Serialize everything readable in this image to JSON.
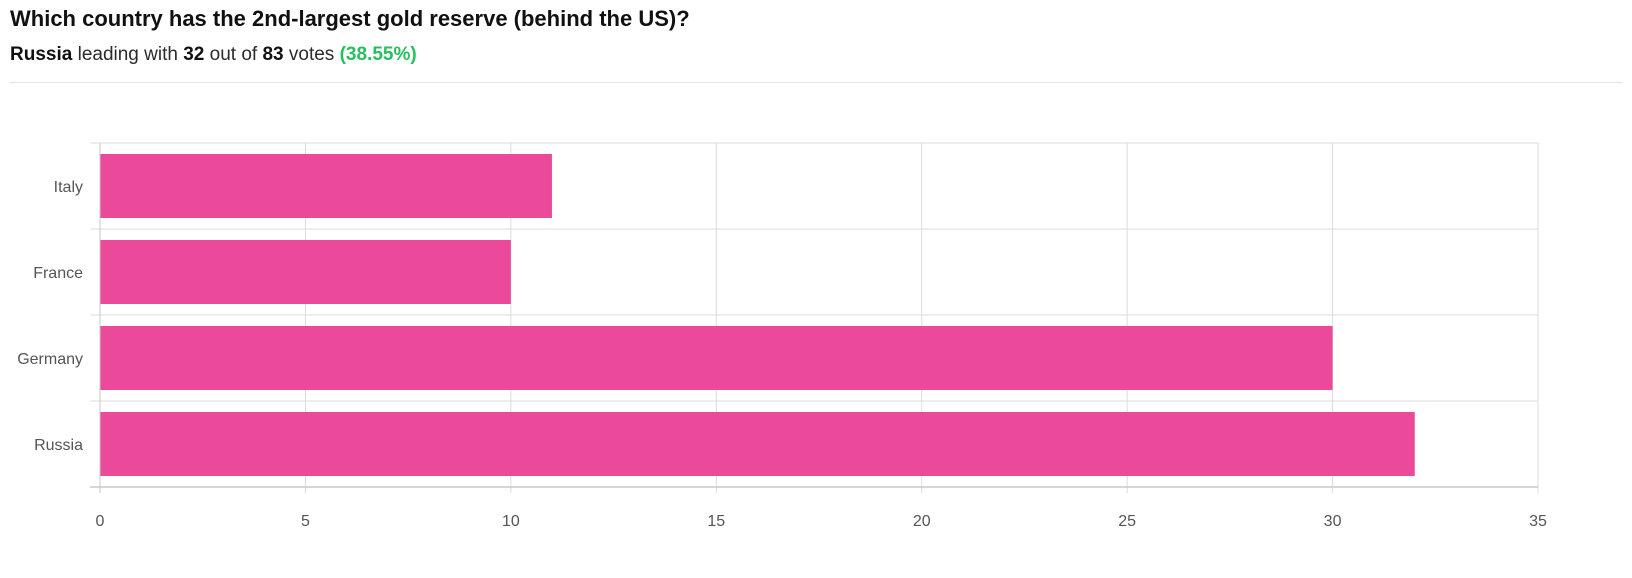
{
  "poll": {
    "question": "Which country has the 2nd-largest gold reserve (behind the US)?",
    "leader": "Russia",
    "leading_text": "leading with",
    "leader_votes": "32",
    "out_of_text": "out of",
    "total_votes": "83",
    "votes_text": "votes",
    "percentage": "(38.55%)"
  },
  "colors": {
    "bar": "#eb4a9a",
    "percentage": "#27c05f",
    "grid": "#dcdcdc",
    "axis": "#c8c8c8"
  },
  "chart_data": {
    "type": "bar",
    "orientation": "horizontal",
    "categories": [
      "Italy",
      "France",
      "Germany",
      "Russia"
    ],
    "values": [
      11,
      10,
      30,
      32
    ],
    "xlim": [
      0,
      35
    ],
    "xticks": [
      0,
      5,
      10,
      15,
      20,
      25,
      30,
      35
    ],
    "grid": true,
    "legend": "none"
  }
}
